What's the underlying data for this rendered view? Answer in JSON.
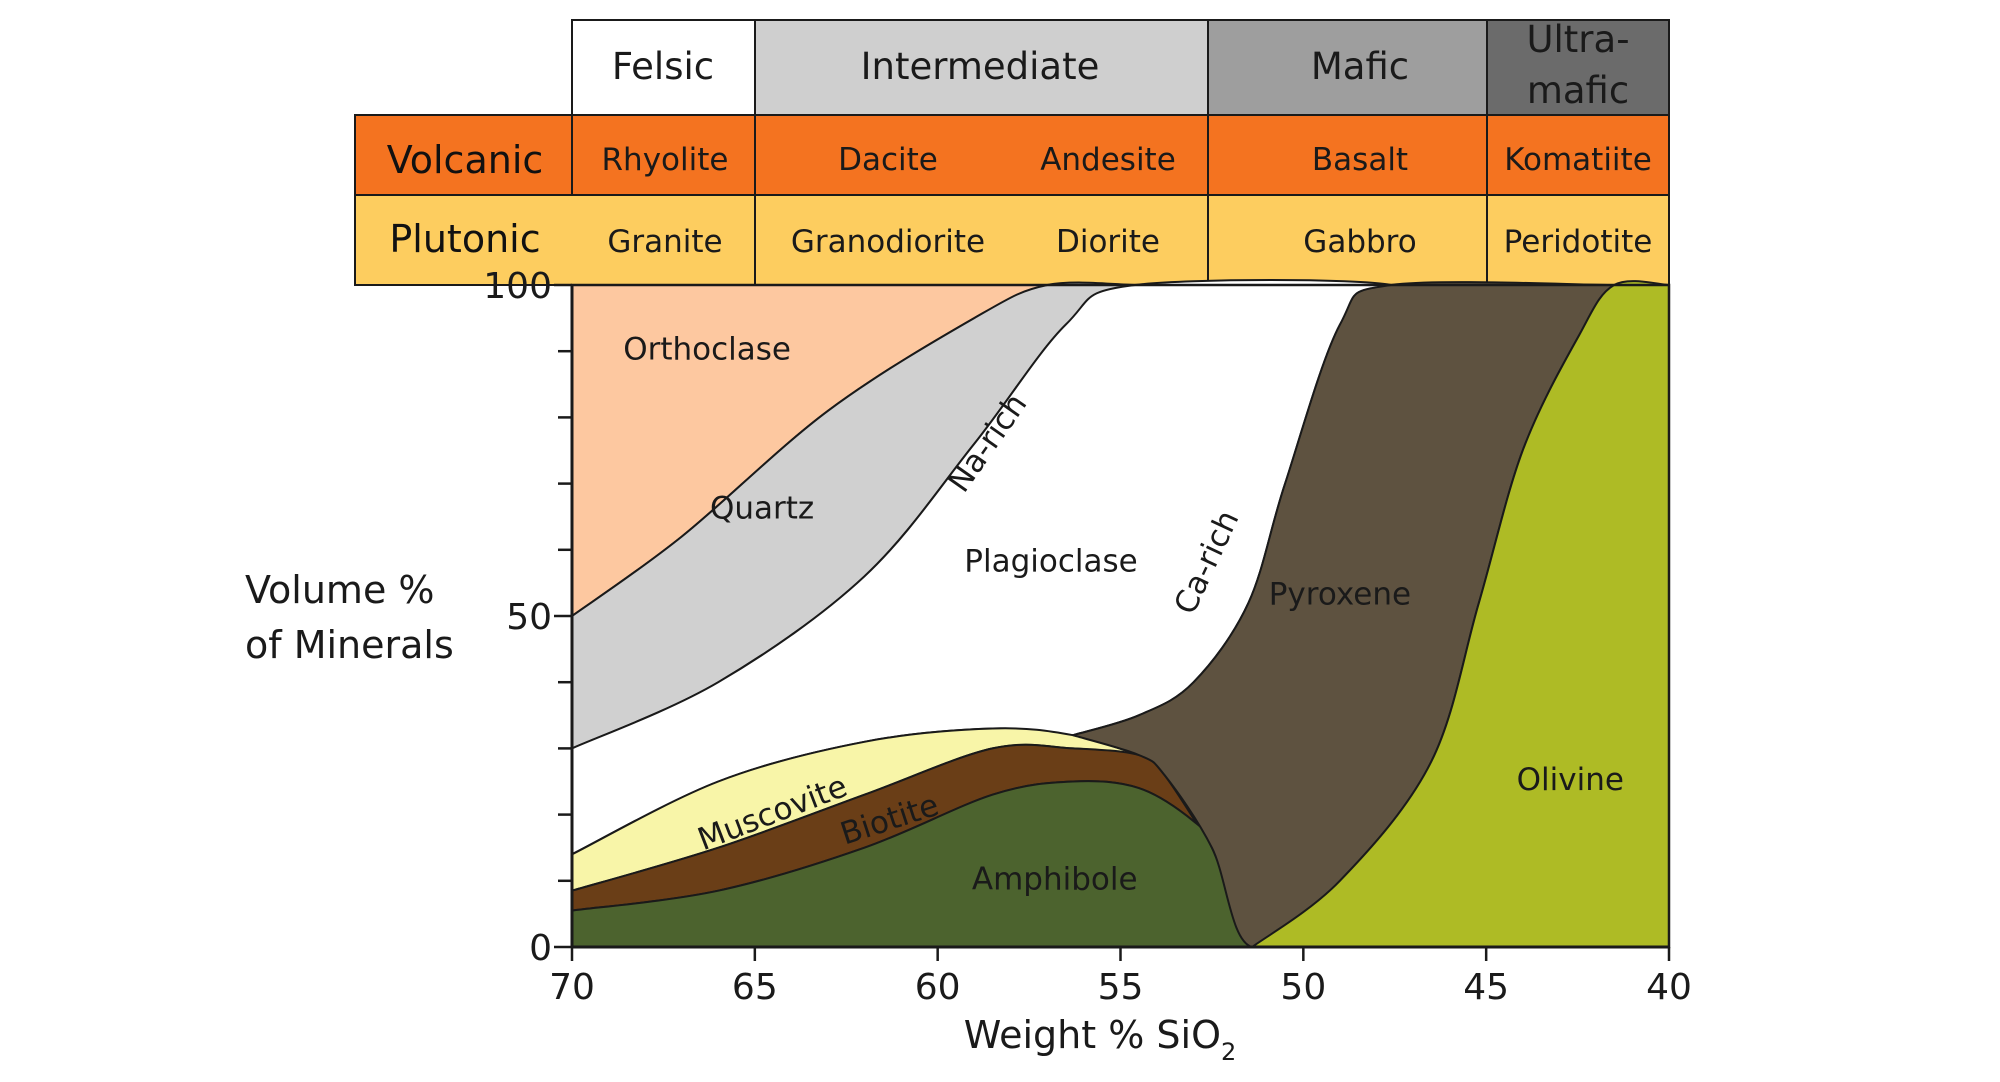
{
  "header": {
    "classes": [
      {
        "label": "Felsic",
        "from": 70,
        "to": 65,
        "color": "#ffffff"
      },
      {
        "label": "Intermediate",
        "from": 65,
        "to": 52.6,
        "color": "#cfcfcf"
      },
      {
        "label": "Mafic",
        "from": 52.6,
        "to": 45,
        "color": "#9e9e9e"
      },
      {
        "label_line1": "Ultra-",
        "label_line2": "mafic",
        "from": 45,
        "to": 40,
        "color": "#6b6b6b"
      }
    ],
    "volcanic": {
      "label": "Volcanic",
      "color": "#f47320",
      "rocks": [
        "Rhyolite",
        "Dacite",
        "Andesite",
        "Basalt",
        "Komatiite"
      ]
    },
    "plutonic": {
      "label": "Plutonic",
      "color": "#fdcd5f",
      "rocks": [
        "Granite",
        "Granodiorite",
        "Diorite",
        "Gabbro",
        "Peridotite"
      ]
    }
  },
  "chart_data": {
    "type": "area",
    "xlabel_main": "Weight % SiO",
    "xlabel_sub": "2",
    "ylabel_line1": "Volume %",
    "ylabel_line2": "of Minerals",
    "xlim": [
      70,
      40
    ],
    "ylim": [
      0,
      100
    ],
    "x_ticks": [
      70,
      65,
      60,
      55,
      50,
      45,
      40
    ],
    "y_tick_labels": [
      0,
      50,
      100
    ],
    "y_minor_step": 10,
    "regions": [
      {
        "name": "Orthoclase",
        "color": "#fdc8a0",
        "upper": [
          [
            70,
            100
          ],
          [
            57,
            100
          ]
        ],
        "lower": [
          [
            70,
            50
          ],
          [
            67,
            62
          ],
          [
            63,
            81
          ],
          [
            59,
            95
          ],
          [
            57,
            100
          ]
        ]
      },
      {
        "name": "Quartz",
        "color": "#d0d0d0",
        "upper": [
          [
            70,
            50
          ],
          [
            67,
            62
          ],
          [
            63,
            81
          ],
          [
            59,
            95
          ],
          [
            57,
            100
          ],
          [
            54.6,
            100
          ]
        ],
        "lower": [
          [
            70,
            30
          ],
          [
            66,
            40
          ],
          [
            62,
            56
          ],
          [
            59,
            76
          ],
          [
            56.5,
            94
          ],
          [
            54.6,
            100
          ]
        ]
      },
      {
        "name": "Plagioclase",
        "color": "#ffffff",
        "upper": [
          [
            70,
            30
          ],
          [
            66,
            40
          ],
          [
            62,
            56
          ],
          [
            59,
            76
          ],
          [
            56.5,
            94
          ],
          [
            54.6,
            100
          ],
          [
            47.6,
            100
          ],
          [
            49,
            94
          ],
          [
            50.5,
            70
          ],
          [
            51.5,
            52
          ],
          [
            53,
            40
          ],
          [
            54.5,
            35
          ],
          [
            56.3,
            32
          ]
        ],
        "lower": [
          [
            70,
            14
          ],
          [
            66,
            25
          ],
          [
            62,
            31
          ],
          [
            58.5,
            33
          ],
          [
            56.3,
            32
          ]
        ]
      },
      {
        "name": "Muscovite",
        "color": "#f8f5a8",
        "upper": [
          [
            70,
            14
          ],
          [
            66,
            25
          ],
          [
            62,
            31
          ],
          [
            58.5,
            33
          ],
          [
            56.3,
            32
          ],
          [
            54.5,
            29
          ]
        ],
        "lower": [
          [
            70,
            8.5
          ],
          [
            66,
            15
          ],
          [
            62,
            23
          ],
          [
            58.5,
            30
          ],
          [
            56.3,
            30
          ],
          [
            54.5,
            29
          ]
        ]
      },
      {
        "name": "Biotite",
        "color": "#6a3e17",
        "upper": [
          [
            70,
            8.5
          ],
          [
            66,
            15
          ],
          [
            62,
            23
          ],
          [
            58.5,
            30
          ],
          [
            56.3,
            30
          ],
          [
            54.5,
            29
          ],
          [
            53.8,
            26
          ],
          [
            52.5,
            15
          ]
        ],
        "lower": [
          [
            70,
            5.5
          ],
          [
            66,
            8.5
          ],
          [
            62,
            15
          ],
          [
            58.5,
            23
          ],
          [
            56.3,
            25
          ],
          [
            54.5,
            24
          ],
          [
            53,
            19
          ],
          [
            52.5,
            15
          ]
        ]
      },
      {
        "name": "Amphibole",
        "color": "#4c632e",
        "upper": [
          [
            70,
            5.5
          ],
          [
            66,
            8.5
          ],
          [
            62,
            15
          ],
          [
            58.5,
            23
          ],
          [
            56.3,
            25
          ],
          [
            54.5,
            24
          ],
          [
            53,
            19
          ],
          [
            52.5,
            15
          ],
          [
            51.4,
            0
          ]
        ],
        "lower": [
          [
            70,
            0
          ],
          [
            51.4,
            0
          ]
        ]
      },
      {
        "name": "Pyroxene",
        "color": "#5e5240",
        "upper": [
          [
            56.3,
            32
          ],
          [
            54.5,
            35
          ],
          [
            53,
            40
          ],
          [
            51.5,
            52
          ],
          [
            50.5,
            70
          ],
          [
            49,
            94
          ],
          [
            47.6,
            100
          ],
          [
            41.5,
            100
          ]
        ],
        "lower": [
          [
            56.3,
            32
          ],
          [
            54.5,
            29
          ],
          [
            53.8,
            26
          ],
          [
            52.5,
            15
          ],
          [
            51.4,
            0
          ],
          [
            49,
            10
          ],
          [
            46.5,
            28
          ],
          [
            45.2,
            52
          ],
          [
            44,
            75
          ],
          [
            42.5,
            92
          ],
          [
            41.5,
            100
          ]
        ]
      },
      {
        "name": "Olivine",
        "color": "#aebb25",
        "upper": [
          [
            51.4,
            0
          ],
          [
            49,
            10
          ],
          [
            46.5,
            28
          ],
          [
            45.2,
            52
          ],
          [
            44,
            75
          ],
          [
            42.5,
            92
          ],
          [
            41.5,
            100
          ],
          [
            40,
            100
          ]
        ],
        "lower": [
          [
            51.4,
            0
          ],
          [
            40,
            0
          ]
        ]
      }
    ],
    "annotations": [
      {
        "text": "Orthoclase",
        "x": 68.6,
        "y": 90,
        "rotate": 0,
        "anchor": "start"
      },
      {
        "text": "Quartz",
        "x": 64.8,
        "y": 66,
        "rotate": 0,
        "anchor": "middle"
      },
      {
        "text": "Na-rich",
        "x": 58.6,
        "y": 76,
        "rotate": -55,
        "anchor": "middle"
      },
      {
        "text": "Plagioclase",
        "x": 56.9,
        "y": 58,
        "rotate": 0,
        "anchor": "middle"
      },
      {
        "text": "Ca-rich",
        "x": 52.6,
        "y": 58,
        "rotate": -65,
        "anchor": "middle"
      },
      {
        "text": "Pyroxene",
        "x": 49,
        "y": 53,
        "rotate": 0,
        "anchor": "middle"
      },
      {
        "text": "Olivine",
        "x": 42.7,
        "y": 25,
        "rotate": 0,
        "anchor": "middle"
      },
      {
        "text": "Muscovite",
        "x": 64.5,
        "y": 20,
        "rotate": -21,
        "anchor": "middle"
      },
      {
        "text": "Biotite",
        "x": 61.3,
        "y": 19,
        "rotate": -18,
        "anchor": "middle"
      },
      {
        "text": "Amphibole",
        "x": 56.8,
        "y": 10,
        "rotate": 0,
        "anchor": "middle"
      }
    ]
  }
}
